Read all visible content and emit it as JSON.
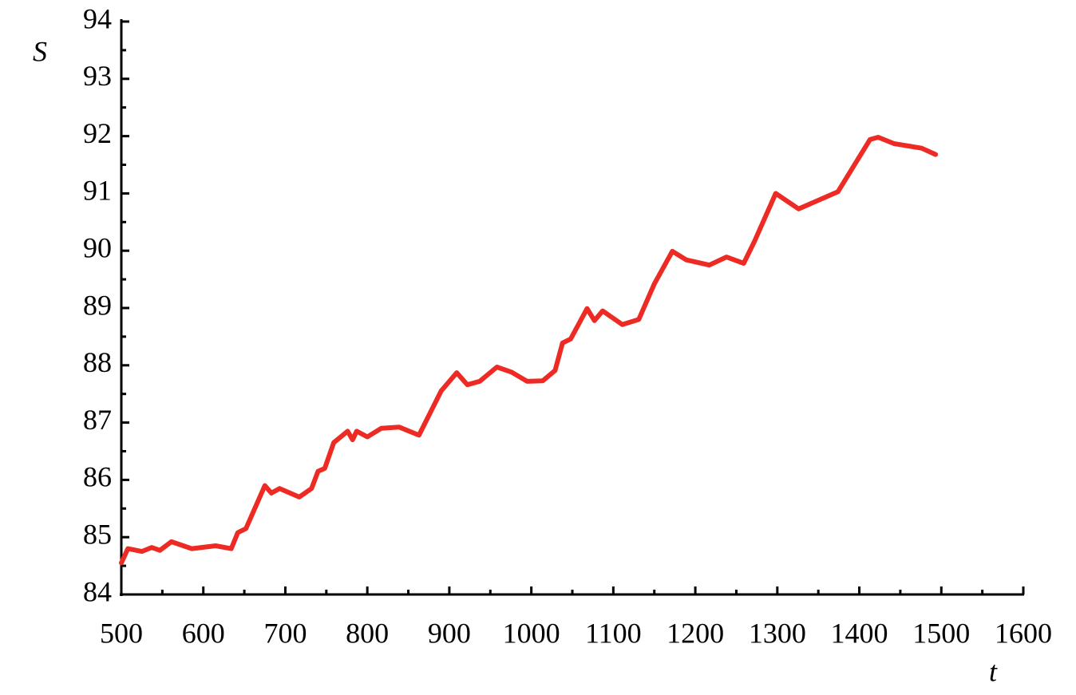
{
  "chart_data": {
    "type": "line",
    "x_label": "t",
    "y_label": "S",
    "xlim": [
      500,
      1600
    ],
    "ylim": [
      84,
      94
    ],
    "xticks": [
      500,
      600,
      700,
      800,
      900,
      1000,
      1100,
      1200,
      1300,
      1400,
      1500,
      1600
    ],
    "yticks": [
      84,
      85,
      86,
      87,
      88,
      89,
      90,
      91,
      92,
      93,
      94
    ],
    "grid": false,
    "series": [
      {
        "name": "S",
        "color": "#ee2a24",
        "x": [
          500,
          508,
          525,
          537,
          547,
          561,
          586,
          615,
          634,
          642,
          652,
          675,
          683,
          693,
          717,
          732,
          740,
          748,
          759,
          776,
          782,
          787,
          800,
          817,
          839,
          863,
          890,
          909,
          922,
          937,
          958,
          976,
          995,
          1014,
          1029,
          1038,
          1048,
          1068,
          1077,
          1087,
          1111,
          1131,
          1150,
          1172,
          1189,
          1217,
          1238,
          1259,
          1272,
          1298,
          1326,
          1374,
          1413,
          1423,
          1442,
          1476,
          1493
        ],
        "values": [
          84.55,
          84.8,
          84.75,
          84.82,
          84.77,
          84.92,
          84.8,
          84.85,
          84.8,
          85.08,
          85.15,
          85.9,
          85.77,
          85.85,
          85.7,
          85.85,
          86.15,
          86.2,
          86.65,
          86.85,
          86.7,
          86.85,
          86.75,
          86.9,
          86.92,
          86.78,
          87.55,
          87.87,
          87.66,
          87.72,
          87.97,
          87.88,
          87.72,
          87.73,
          87.91,
          88.39,
          88.46,
          88.99,
          88.78,
          88.95,
          88.71,
          88.8,
          89.42,
          89.99,
          89.84,
          89.75,
          89.89,
          89.78,
          90.16,
          91.0,
          90.73,
          91.03,
          91.94,
          91.98,
          91.87,
          91.79,
          91.68
        ]
      }
    ]
  }
}
